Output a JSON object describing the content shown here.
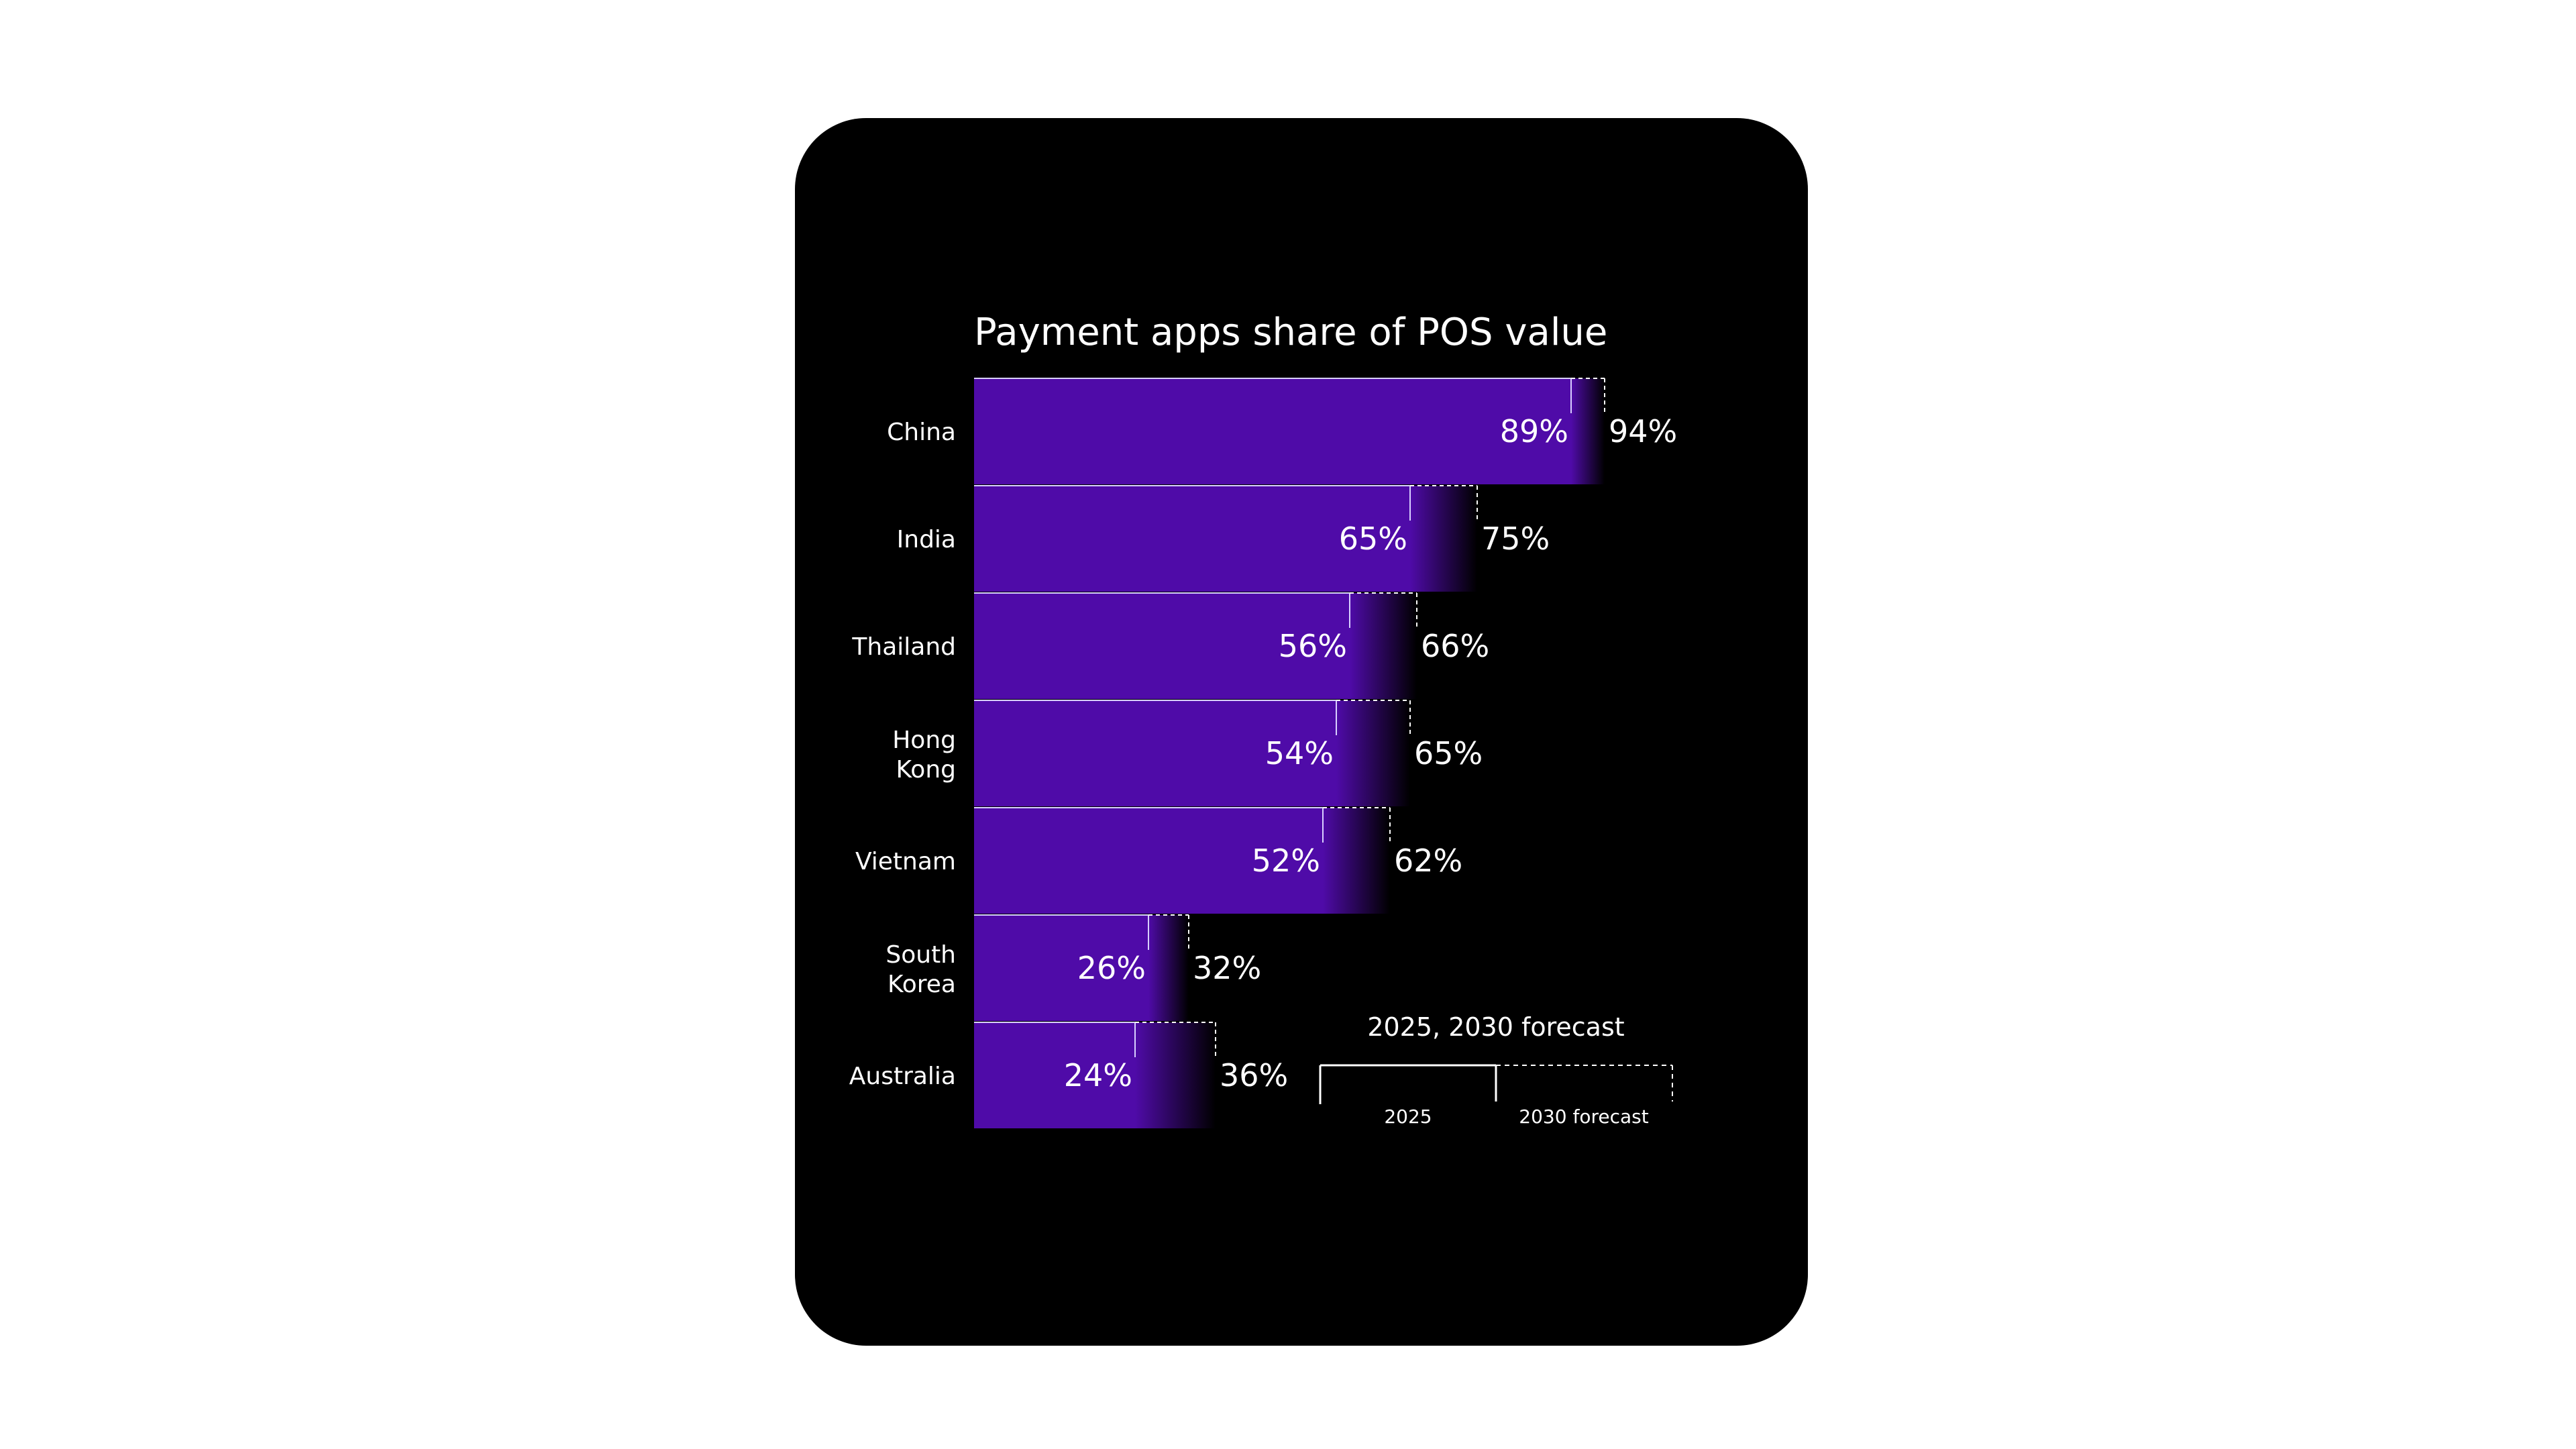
{
  "chart_data": {
    "type": "bar",
    "orientation": "horizontal",
    "title": "Payment apps share of POS value",
    "categories": [
      "China",
      "India",
      "Thailand",
      "Hong Kong",
      "Vietnam",
      "South Korea",
      "Australia"
    ],
    "series": [
      {
        "name": "2025",
        "values": [
          89,
          65,
          56,
          54,
          52,
          26,
          24
        ]
      },
      {
        "name": "2030 forecast",
        "values": [
          94,
          75,
          66,
          65,
          62,
          32,
          36
        ]
      }
    ],
    "value_labels_2025": [
      "89%",
      "65%",
      "56%",
      "54%",
      "52%",
      "26%",
      "24%"
    ],
    "value_labels_2030": [
      "94%",
      "75%",
      "66%",
      "65%",
      "62%",
      "32%",
      "36%"
    ],
    "xlim": [
      0,
      100
    ],
    "legend": {
      "title": "2025, 2030 forecast",
      "items": [
        "2025",
        "2030 forecast"
      ],
      "position": "bottom-right"
    },
    "colors": {
      "bar": "#4f0ba8",
      "background": "#000000",
      "text": "#ffffff"
    }
  }
}
